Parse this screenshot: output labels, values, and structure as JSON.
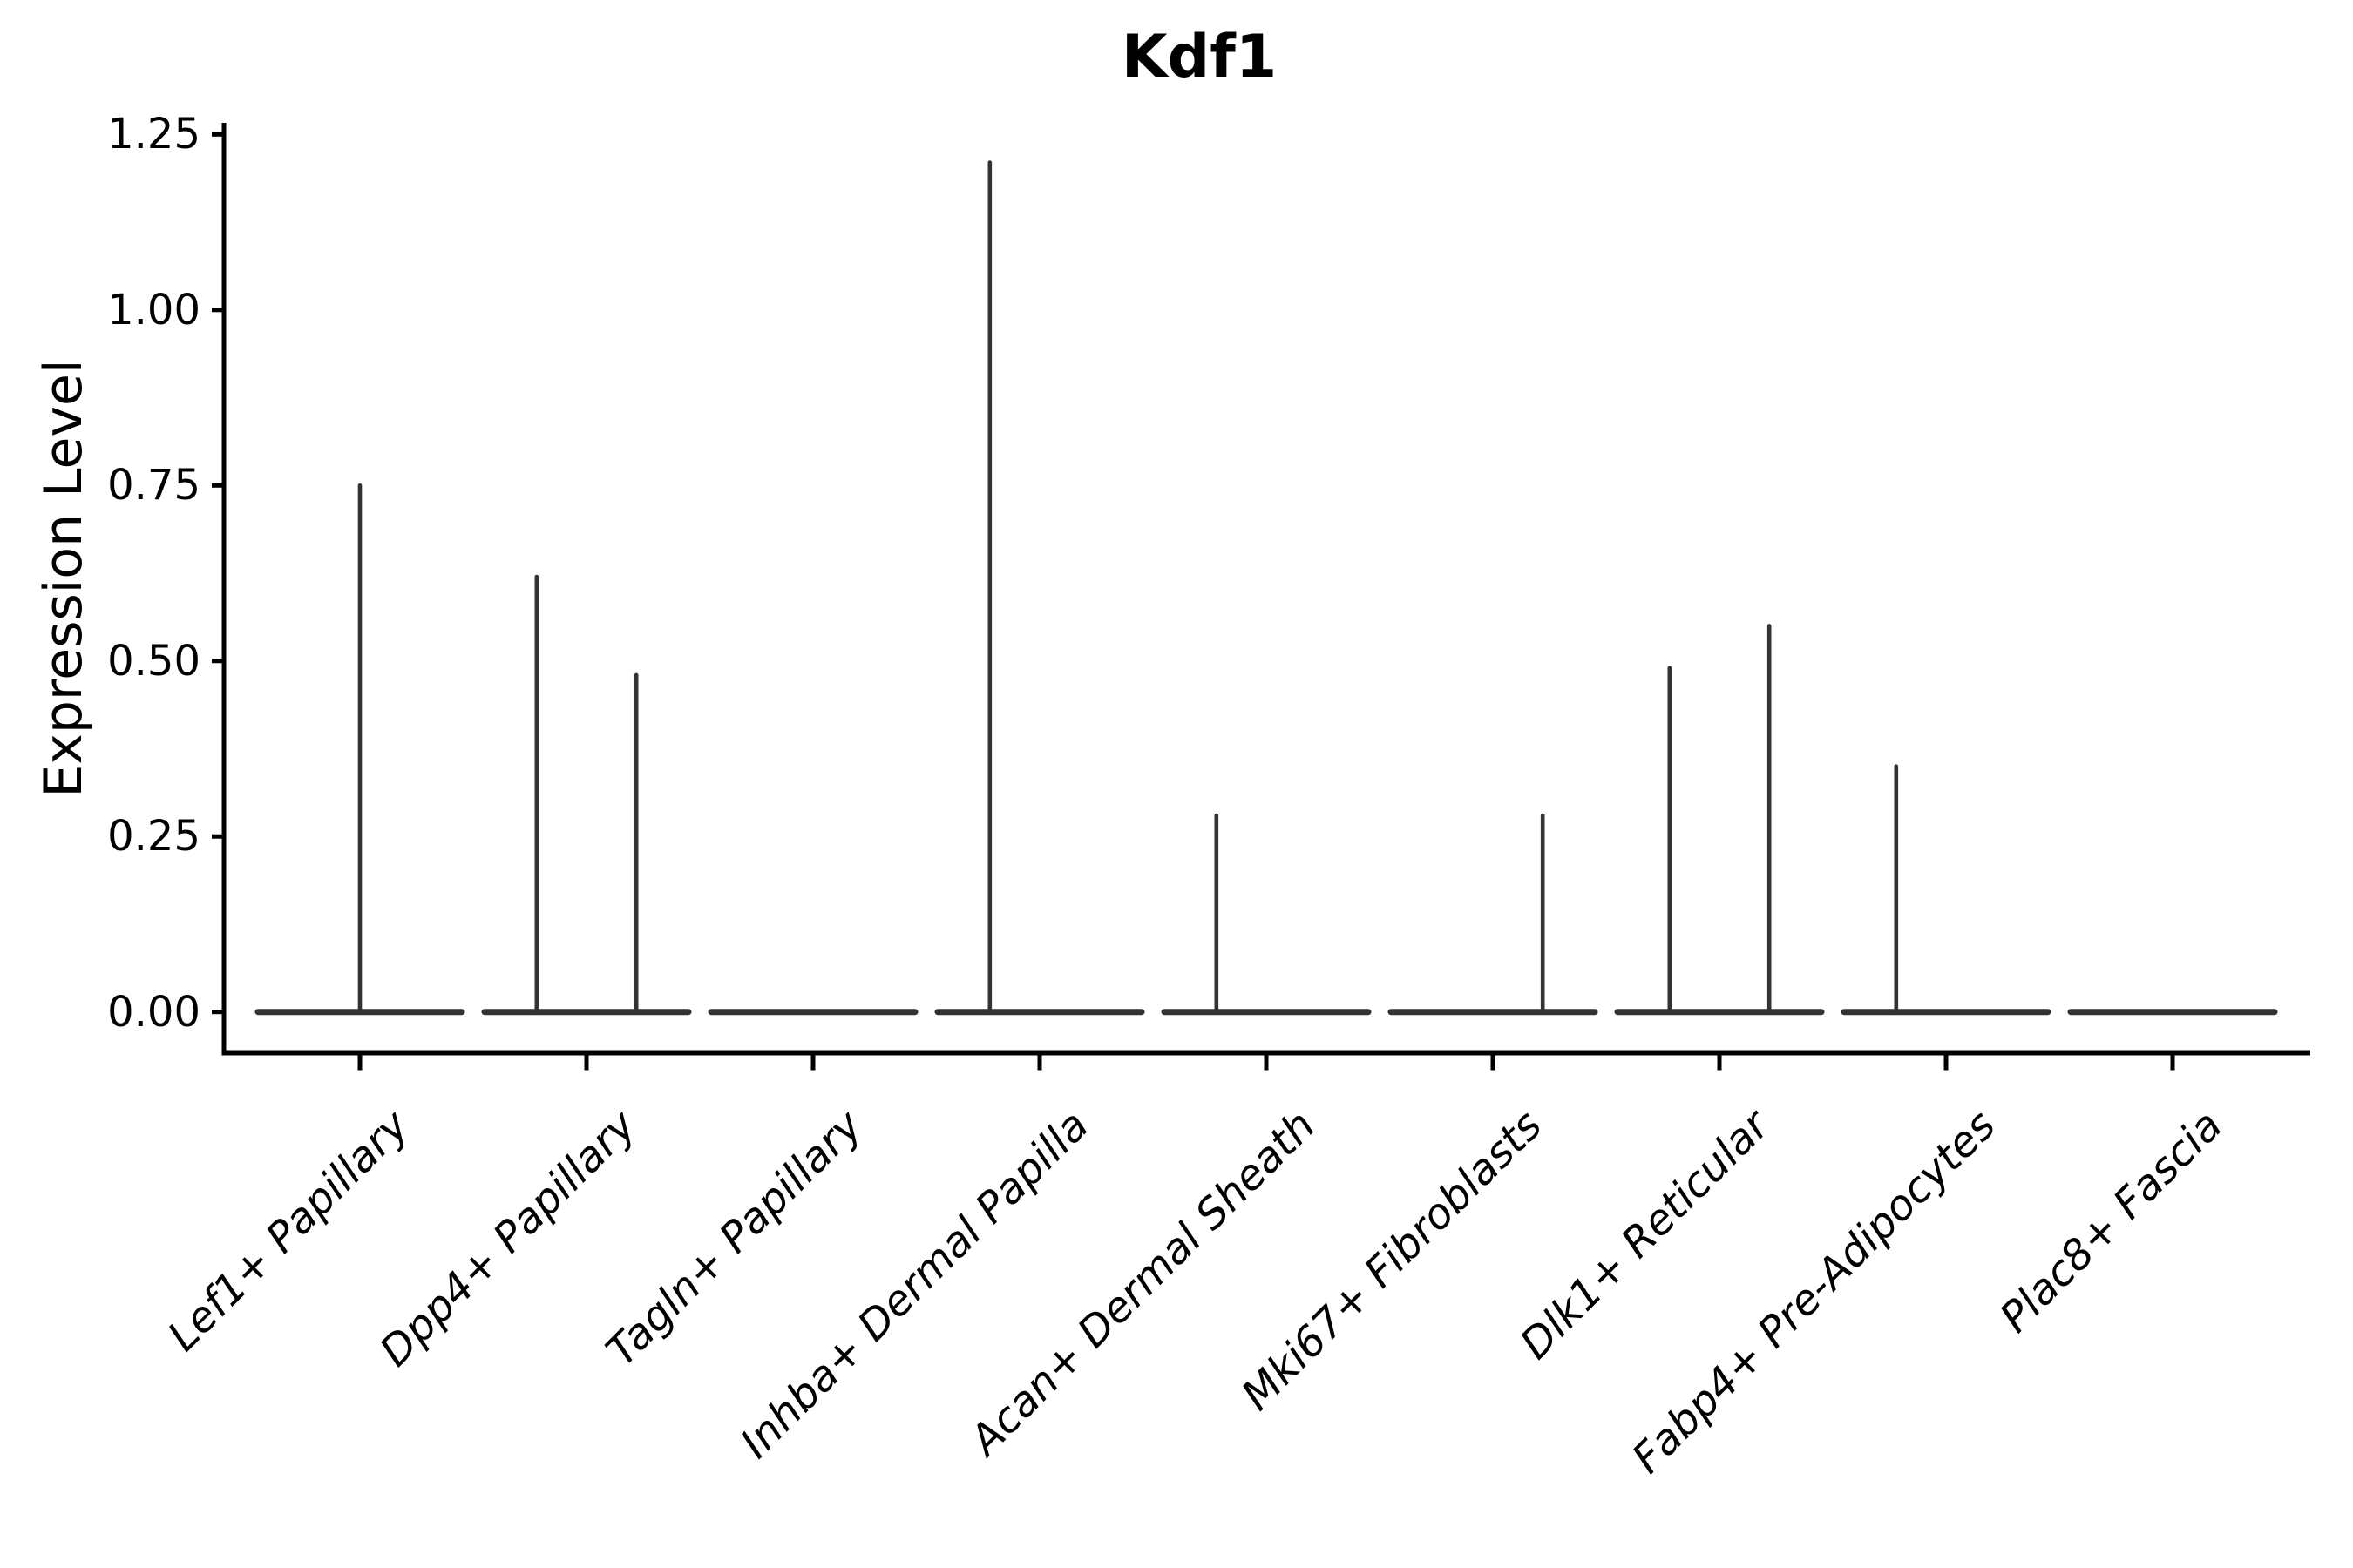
{
  "figure": {
    "background": "#ffffff"
  },
  "style": {
    "violin_color": "#333333",
    "axis_color": "#000000",
    "text_color": "#000000"
  },
  "chart_data": {
    "type": "violin",
    "title": "Kdf1",
    "ylabel": "Expression Level",
    "xlabel": "",
    "yticks": [
      0.0,
      0.25,
      0.5,
      0.75,
      1.0,
      1.25
    ],
    "ytick_labels": [
      "0.00",
      "0.25",
      "0.50",
      "0.75",
      "1.00",
      "1.25"
    ],
    "ylim": [
      -0.06,
      1.27
    ],
    "grid": false,
    "legend": false,
    "categories": [
      "Lef1+ Papillary",
      "Dpp4+ Papillary",
      "Tagln+ Papillary",
      "Inhba+ Dermal Papilla",
      "Acan+ Dermal Sheath",
      "Mki67+ Fibroblasts",
      "Dlk1+ Reticular",
      "Fabp4+ Pre-Adipocytes",
      "Plac8+ Fascia"
    ],
    "violins": [
      {
        "category": "Lef1+ Papillary",
        "baseline_halfwidth": 0.45,
        "spikes": [
          {
            "offset": 0.0,
            "max": 0.75
          }
        ]
      },
      {
        "category": "Dpp4+ Papillary",
        "baseline_halfwidth": 0.45,
        "spikes": [
          {
            "offset": -0.22,
            "max": 0.62
          },
          {
            "offset": 0.22,
            "max": 0.48
          }
        ]
      },
      {
        "category": "Tagln+ Papillary",
        "baseline_halfwidth": 0.45,
        "spikes": []
      },
      {
        "category": "Inhba+ Dermal Papilla",
        "baseline_halfwidth": 0.45,
        "spikes": [
          {
            "offset": -0.22,
            "max": 1.21
          }
        ]
      },
      {
        "category": "Acan+ Dermal Sheath",
        "baseline_halfwidth": 0.45,
        "spikes": [
          {
            "offset": -0.22,
            "max": 0.28
          }
        ]
      },
      {
        "category": "Mki67+ Fibroblasts",
        "baseline_halfwidth": 0.45,
        "spikes": [
          {
            "offset": 0.22,
            "max": 0.28
          }
        ]
      },
      {
        "category": "Dlk1+ Reticular",
        "baseline_halfwidth": 0.45,
        "spikes": [
          {
            "offset": -0.22,
            "max": 0.49
          },
          {
            "offset": 0.22,
            "max": 0.55
          }
        ]
      },
      {
        "category": "Fabp4+ Pre-Adipocytes",
        "baseline_halfwidth": 0.45,
        "spikes": [
          {
            "offset": -0.22,
            "max": 0.35
          }
        ]
      },
      {
        "category": "Plac8+ Fascia",
        "baseline_halfwidth": 0.45,
        "spikes": []
      }
    ]
  }
}
